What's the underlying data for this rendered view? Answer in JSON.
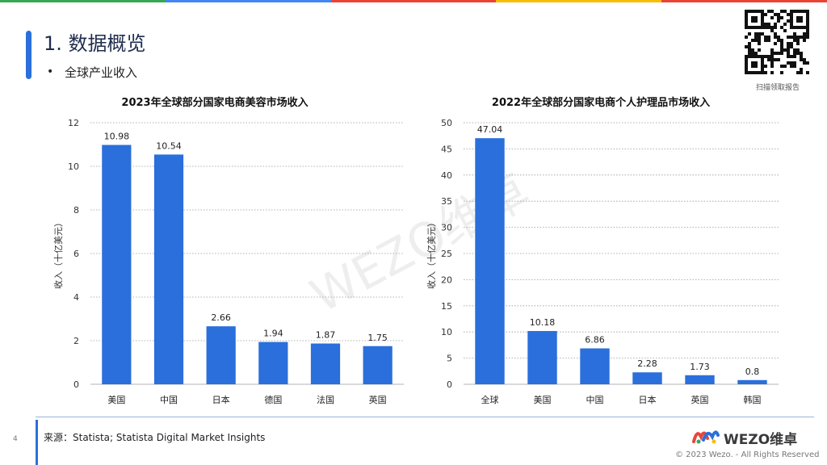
{
  "header": {
    "title": "1. 数据概览",
    "bullet": "•",
    "subtitle": "全球产业收入",
    "qr_caption": "扫描领取报告",
    "accent_colors": [
      "#34a853",
      "#4285f4",
      "#ea4335",
      "#fbbc05",
      "#ea4335"
    ]
  },
  "watermark": "WEZO维卓",
  "chart_data": [
    {
      "type": "bar",
      "title": "2023年全球部分国家电商美容市场收入",
      "categories": [
        "美国",
        "中国",
        "日本",
        "德国",
        "法国",
        "英国"
      ],
      "values": [
        10.98,
        10.54,
        2.66,
        1.94,
        1.87,
        1.75
      ],
      "value_labels": [
        "10.98",
        "10.54",
        "2.66",
        "1.94",
        "1.87",
        "1.75"
      ],
      "ylabel": "收入（十亿美元）",
      "ylim": [
        0,
        12
      ],
      "yticks": [
        0,
        2,
        4,
        6,
        8,
        10,
        12
      ],
      "grid": true,
      "bar_color": "#2a6fdb"
    },
    {
      "type": "bar",
      "title": "2022年全球部分国家电商个人护理品市场收入",
      "categories": [
        "全球",
        "美国",
        "中国",
        "日本",
        "英国",
        "韩国"
      ],
      "values": [
        47.04,
        10.18,
        6.86,
        2.28,
        1.73,
        0.8
      ],
      "value_labels": [
        "47.04",
        "10.18",
        "6.86",
        "2.28",
        "1.73",
        "0.8"
      ],
      "ylabel": "收入（十亿美元）",
      "ylim": [
        0,
        50
      ],
      "yticks": [
        0,
        5,
        10,
        15,
        20,
        25,
        30,
        35,
        40,
        45,
        50
      ],
      "grid": true,
      "bar_color": "#2a6fdb"
    }
  ],
  "footer": {
    "page_number": "4",
    "source": "来源：Statista; Statista Digital Market Insights",
    "logo_text": "WEZO维卓",
    "copyright": "© 2023 Wezo. - All Rights Reserved"
  }
}
